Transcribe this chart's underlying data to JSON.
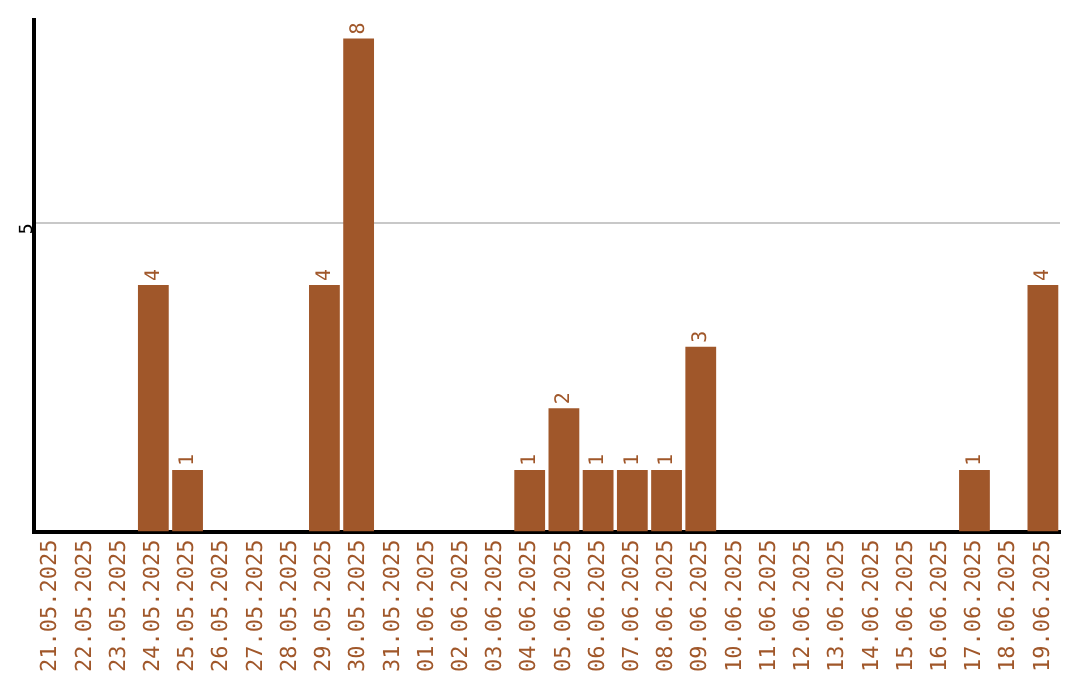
{
  "chart_data": {
    "type": "bar",
    "categories": [
      "21.05.2025",
      "22.05.2025",
      "23.05.2025",
      "24.05.2025",
      "25.05.2025",
      "26.05.2025",
      "27.05.2025",
      "28.05.2025",
      "29.05.2025",
      "30.05.2025",
      "31.05.2025",
      "01.06.2025",
      "02.06.2025",
      "03.06.2025",
      "04.06.2025",
      "05.06.2025",
      "06.06.2025",
      "07.06.2025",
      "08.06.2025",
      "09.06.2025",
      "10.06.2025",
      "11.06.2025",
      "12.06.2025",
      "13.06.2025",
      "14.06.2025",
      "15.06.2025",
      "16.06.2025",
      "17.06.2025",
      "18.06.2025",
      "19.06.2025"
    ],
    "values": [
      0,
      0,
      0,
      4,
      1,
      0,
      0,
      0,
      4,
      8,
      0,
      0,
      0,
      0,
      1,
      2,
      1,
      1,
      1,
      3,
      0,
      0,
      0,
      0,
      0,
      0,
      0,
      1,
      0,
      4
    ],
    "value_labels": [
      null,
      null,
      null,
      "4",
      "1",
      null,
      null,
      null,
      "4",
      "8",
      null,
      null,
      null,
      null,
      "1",
      "2",
      "1",
      "1",
      "1",
      "3",
      null,
      null,
      null,
      null,
      null,
      null,
      null,
      "1",
      null,
      "4"
    ],
    "color": "#a0572a",
    "ylim": [
      0,
      8.3
    ],
    "yticks": [
      5
    ],
    "grid": "y",
    "legend": false
  }
}
